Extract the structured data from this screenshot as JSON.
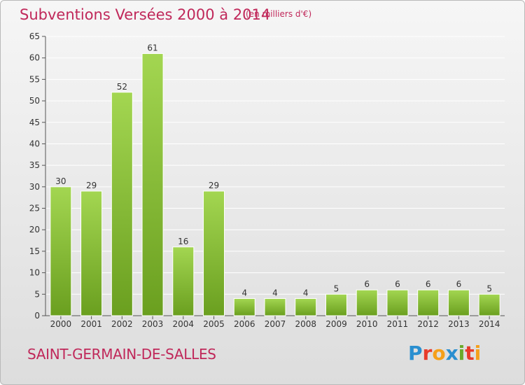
{
  "title": "Subventions Versées 2000 à 2014",
  "subtitle": "(en milliers d'€)",
  "commune": "SAINT-GERMAIN-DE-SALLES",
  "logo": [
    "P",
    "r",
    "o",
    "x",
    "i",
    "t",
    "i"
  ],
  "colors": {
    "bar_light": "#9fd14f",
    "bar_dark": "#6a9f1f",
    "title": "#c0285a",
    "grid": "#ffffff"
  },
  "chart_data": {
    "type": "bar",
    "categories": [
      "2000",
      "2001",
      "2002",
      "2003",
      "2004",
      "2005",
      "2006",
      "2007",
      "2008",
      "2009",
      "2010",
      "2011",
      "2012",
      "2013",
      "2014"
    ],
    "values": [
      30,
      29,
      52,
      61,
      16,
      29,
      4,
      4,
      4,
      5,
      6,
      6,
      6,
      6,
      5
    ],
    "title": "Subventions Versées 2000 à 2014",
    "subtitle": "(en milliers d'€)",
    "xlabel": "",
    "ylabel": "",
    "ylim": [
      0,
      65
    ],
    "yticks": [
      0,
      5,
      10,
      15,
      20,
      25,
      30,
      35,
      40,
      45,
      50,
      55,
      60,
      65
    ],
    "grid": true,
    "data_labels": true
  }
}
